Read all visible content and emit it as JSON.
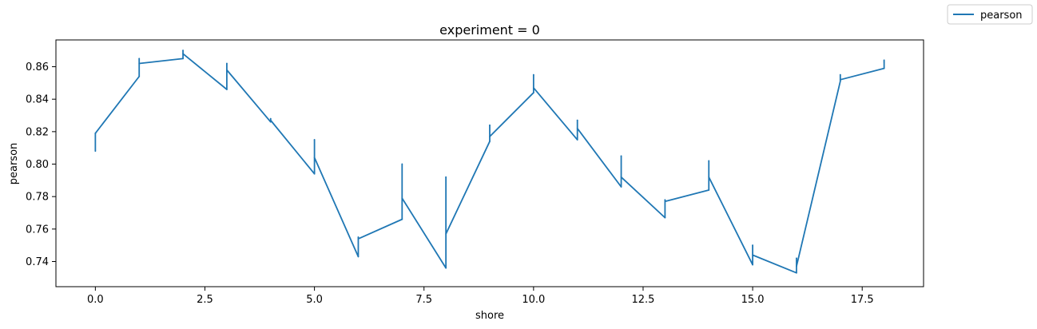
{
  "chart_data": {
    "type": "line",
    "title": "experiment = 0",
    "xlabel": "shore",
    "ylabel": "pearson",
    "xlim": [
      -0.9,
      18.9
    ],
    "ylim": [
      0.7245,
      0.8765
    ],
    "xticks": [
      0,
      2.5,
      5,
      7.5,
      10,
      12.5,
      15,
      17.5
    ],
    "xtick_labels": [
      "0.0",
      "2.5",
      "5.0",
      "7.5",
      "10.0",
      "12.5",
      "15.0",
      "17.5"
    ],
    "yticks": [
      0.74,
      0.76,
      0.78,
      0.8,
      0.82,
      0.84,
      0.86
    ],
    "ytick_labels": [
      "0.74",
      "0.76",
      "0.78",
      "0.80",
      "0.82",
      "0.84",
      "0.86"
    ],
    "grid": false,
    "legend_position": "top-right (outside)",
    "series": [
      {
        "name": "pearson",
        "color": "#1f77b4",
        "x": [
          0,
          0,
          0,
          1,
          1,
          1,
          2,
          2,
          2,
          3,
          3,
          3,
          4,
          4,
          4,
          5,
          5,
          5,
          6,
          6,
          6,
          7,
          7,
          7,
          8,
          8,
          8,
          9,
          9,
          9,
          10,
          10,
          10,
          11,
          11,
          11,
          12,
          12,
          12,
          13,
          13,
          13,
          14,
          14,
          14,
          15,
          15,
          15,
          16,
          16,
          16,
          17,
          17,
          17,
          18,
          18,
          18
        ],
        "y": [
          0.808,
          0.819,
          0.819,
          0.854,
          0.865,
          0.862,
          0.865,
          0.87,
          0.868,
          0.846,
          0.862,
          0.858,
          0.826,
          0.828,
          0.827,
          0.794,
          0.815,
          0.804,
          0.743,
          0.755,
          0.754,
          0.766,
          0.8,
          0.779,
          0.736,
          0.792,
          0.757,
          0.814,
          0.824,
          0.817,
          0.844,
          0.855,
          0.847,
          0.815,
          0.827,
          0.822,
          0.786,
          0.805,
          0.792,
          0.767,
          0.778,
          0.777,
          0.784,
          0.802,
          0.792,
          0.738,
          0.75,
          0.744,
          0.733,
          0.742,
          0.737,
          0.851,
          0.855,
          0.852,
          0.859,
          0.864,
          0.863
        ]
      }
    ]
  }
}
